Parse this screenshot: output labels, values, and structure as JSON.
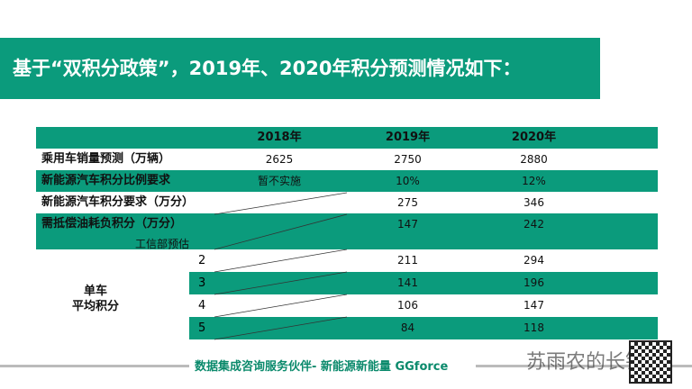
{
  "title": "基于“双积分政策”，2019年、2020年积分预测情况如下：",
  "table": {
    "headers": [
      "2018年",
      "2019年",
      "2020年"
    ],
    "rows": [
      {
        "label": "乘用车销量预测（万辆）",
        "values": [
          "2625",
          "2750",
          "2880"
        ]
      },
      {
        "label": "新能源汽车积分比例要求",
        "values": [
          "暂不实施",
          "10%",
          "12%"
        ]
      },
      {
        "label": "新能源汽车积分要求（万分）",
        "values": [
          "",
          "275",
          "346"
        ]
      },
      {
        "label": "需抵偿油耗负积分（万分）",
        "values": [
          "",
          "147",
          "242"
        ]
      }
    ],
    "note": "工信部预估",
    "group_label_1": "单车",
    "group_label_2": "平均积分",
    "sub_rows": [
      {
        "label": "2",
        "values": [
          "211",
          "294"
        ]
      },
      {
        "label": "3",
        "values": [
          "141",
          "196"
        ]
      },
      {
        "label": "4",
        "values": [
          "106",
          "147"
        ]
      },
      {
        "label": "5",
        "values": [
          "84",
          "118"
        ]
      }
    ]
  },
  "footer": "数据集成咨询服务伙伴- 新能源新能量 GGforce",
  "watermark": "苏雨农的长镜头",
  "colors": {
    "accent": "#0b9b7c"
  }
}
